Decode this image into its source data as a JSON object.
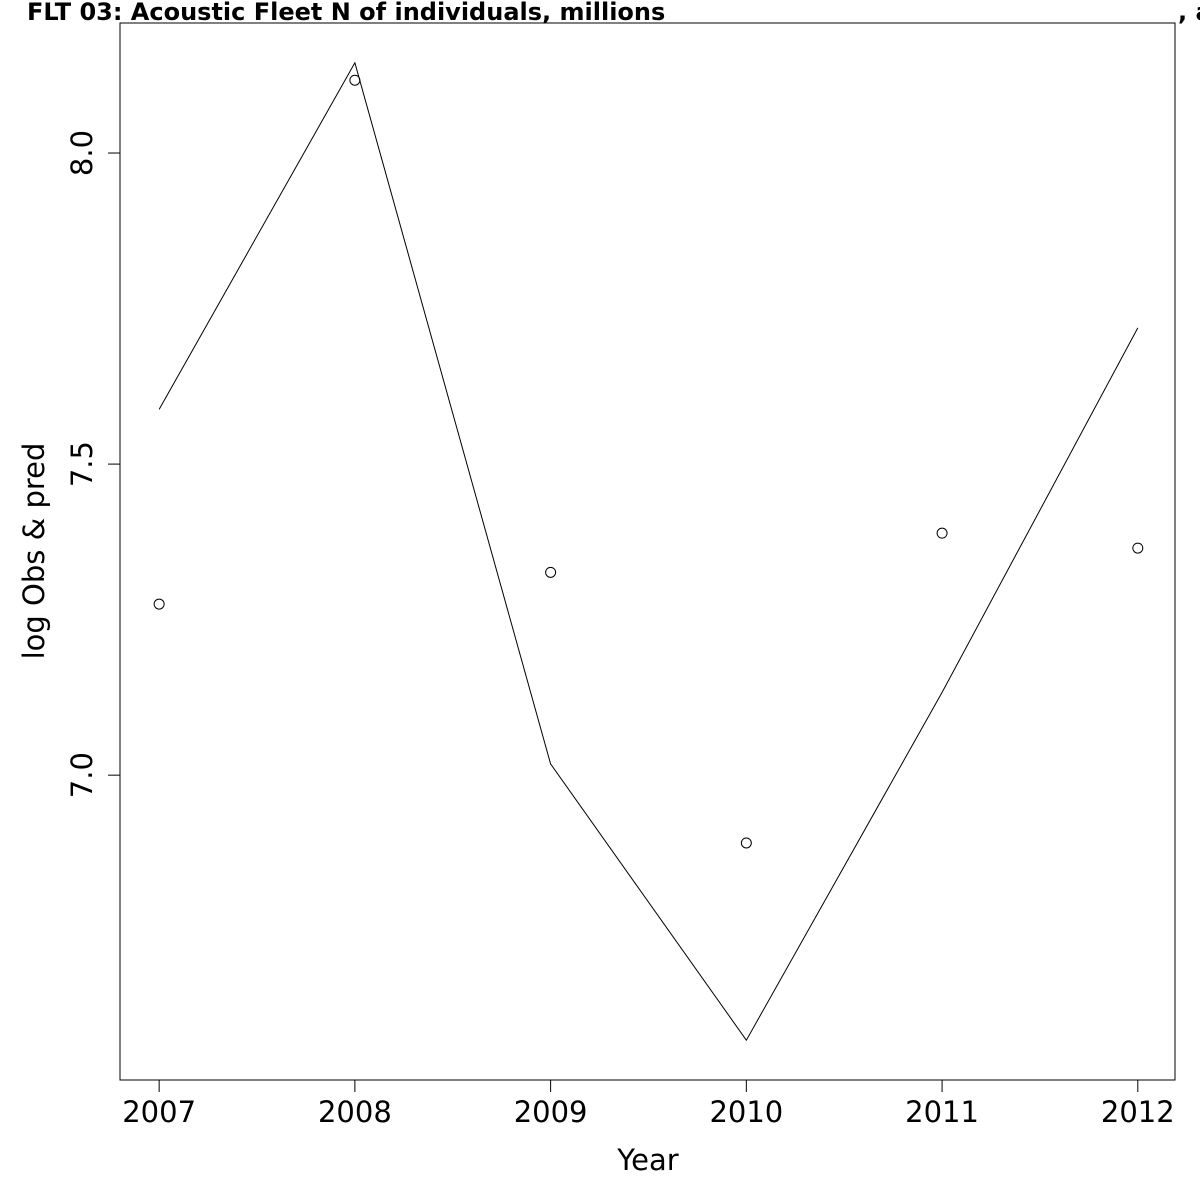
{
  "chart_data": {
    "type": "line",
    "title": "FLT 03: Acoustic Fleet   N of individuals, millions",
    "subtitle": ", a",
    "x_label": "Year",
    "y_label": "log Obs & pred",
    "x": [
      2007,
      2008,
      2009,
      2010,
      2011,
      2012
    ],
    "series": [
      {
        "style": "line",
        "color": "#000000",
        "values": [
          7.588,
          8.145,
          7.018,
          6.574,
          7.133,
          7.719
        ]
      },
      {
        "style": "points",
        "color": "#000000",
        "values": [
          7.275,
          8.117,
          7.326,
          6.891,
          7.389,
          7.365
        ]
      }
    ],
    "xlim": [
      2006.8,
      2012.19
    ],
    "xticks": [
      2007,
      2008,
      2009,
      2010,
      2011,
      2012
    ],
    "ylim": [
      6.51,
      8.209
    ],
    "yticks": [
      {
        "value": 7.0,
        "label": "7.0"
      },
      7.5,
      {
        "value": 8.0,
        "label": "8.0"
      }
    ]
  }
}
